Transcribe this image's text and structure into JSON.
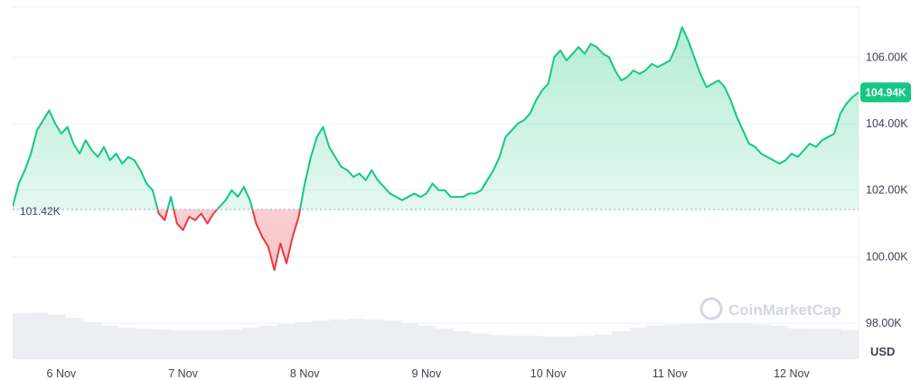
{
  "chart_data": {
    "type": "area",
    "currency_label": "USD",
    "baseline": {
      "value": 101.42,
      "label": "101.42K"
    },
    "last_price": {
      "value": 104.94,
      "label": "104.94K"
    },
    "ylim": [
      97.0,
      107.5
    ],
    "y_ticks": [
      {
        "value": 98.0,
        "label": "98.00K"
      },
      {
        "value": 100.0,
        "label": "100.00K"
      },
      {
        "value": 102.0,
        "label": "102.00K"
      },
      {
        "value": 104.0,
        "label": "104.00K"
      },
      {
        "value": 106.0,
        "label": "106.00K"
      }
    ],
    "x_range": [
      5.6,
      12.55
    ],
    "x_ticks": [
      {
        "value": 6,
        "label": "6 Nov"
      },
      {
        "value": 7,
        "label": "7 Nov"
      },
      {
        "value": 8,
        "label": "8 Nov"
      },
      {
        "value": 9,
        "label": "9 Nov"
      },
      {
        "value": 10,
        "label": "10 Nov"
      },
      {
        "value": 11,
        "label": "11 Nov"
      },
      {
        "value": 12,
        "label": "12 Nov"
      }
    ],
    "series": [
      {
        "values_in": "K USD",
        "points": [
          [
            5.6,
            101.5
          ],
          [
            5.65,
            102.2
          ],
          [
            5.7,
            102.6
          ],
          [
            5.75,
            103.1
          ],
          [
            5.8,
            103.8
          ],
          [
            5.85,
            104.1
          ],
          [
            5.9,
            104.4
          ],
          [
            5.95,
            104.0
          ],
          [
            6.0,
            103.7
          ],
          [
            6.05,
            103.9
          ],
          [
            6.1,
            103.4
          ],
          [
            6.15,
            103.1
          ],
          [
            6.2,
            103.5
          ],
          [
            6.25,
            103.2
          ],
          [
            6.3,
            103.0
          ],
          [
            6.35,
            103.3
          ],
          [
            6.4,
            102.9
          ],
          [
            6.45,
            103.1
          ],
          [
            6.5,
            102.8
          ],
          [
            6.55,
            103.0
          ],
          [
            6.6,
            102.9
          ],
          [
            6.65,
            102.6
          ],
          [
            6.7,
            102.2
          ],
          [
            6.75,
            102.0
          ],
          [
            6.8,
            101.3
          ],
          [
            6.85,
            101.1
          ],
          [
            6.9,
            101.8
          ],
          [
            6.95,
            101.0
          ],
          [
            7.0,
            100.8
          ],
          [
            7.05,
            101.2
          ],
          [
            7.1,
            101.1
          ],
          [
            7.15,
            101.3
          ],
          [
            7.2,
            101.0
          ],
          [
            7.25,
            101.3
          ],
          [
            7.3,
            101.5
          ],
          [
            7.35,
            101.7
          ],
          [
            7.4,
            102.0
          ],
          [
            7.45,
            101.8
          ],
          [
            7.5,
            102.1
          ],
          [
            7.55,
            101.7
          ],
          [
            7.6,
            101.0
          ],
          [
            7.65,
            100.6
          ],
          [
            7.7,
            100.3
          ],
          [
            7.75,
            99.6
          ],
          [
            7.8,
            100.4
          ],
          [
            7.85,
            99.8
          ],
          [
            7.9,
            100.6
          ],
          [
            7.95,
            101.2
          ],
          [
            8.0,
            102.2
          ],
          [
            8.05,
            103.0
          ],
          [
            8.1,
            103.6
          ],
          [
            8.15,
            103.9
          ],
          [
            8.2,
            103.3
          ],
          [
            8.25,
            103.0
          ],
          [
            8.3,
            102.7
          ],
          [
            8.35,
            102.6
          ],
          [
            8.4,
            102.4
          ],
          [
            8.45,
            102.5
          ],
          [
            8.5,
            102.3
          ],
          [
            8.55,
            102.6
          ],
          [
            8.6,
            102.3
          ],
          [
            8.65,
            102.1
          ],
          [
            8.7,
            101.9
          ],
          [
            8.75,
            101.8
          ],
          [
            8.8,
            101.7
          ],
          [
            8.85,
            101.8
          ],
          [
            8.9,
            101.9
          ],
          [
            8.95,
            101.8
          ],
          [
            9.0,
            101.9
          ],
          [
            9.05,
            102.2
          ],
          [
            9.1,
            102.0
          ],
          [
            9.15,
            102.0
          ],
          [
            9.2,
            101.8
          ],
          [
            9.25,
            101.8
          ],
          [
            9.3,
            101.8
          ],
          [
            9.35,
            101.9
          ],
          [
            9.4,
            101.9
          ],
          [
            9.45,
            102.0
          ],
          [
            9.5,
            102.3
          ],
          [
            9.55,
            102.6
          ],
          [
            9.6,
            103.0
          ],
          [
            9.65,
            103.6
          ],
          [
            9.7,
            103.8
          ],
          [
            9.75,
            104.0
          ],
          [
            9.8,
            104.1
          ],
          [
            9.85,
            104.3
          ],
          [
            9.9,
            104.7
          ],
          [
            9.95,
            105.0
          ],
          [
            10.0,
            105.2
          ],
          [
            10.05,
            106.0
          ],
          [
            10.1,
            106.2
          ],
          [
            10.15,
            105.9
          ],
          [
            10.2,
            106.1
          ],
          [
            10.25,
            106.3
          ],
          [
            10.3,
            106.1
          ],
          [
            10.35,
            106.4
          ],
          [
            10.4,
            106.3
          ],
          [
            10.45,
            106.1
          ],
          [
            10.5,
            106.0
          ],
          [
            10.55,
            105.6
          ],
          [
            10.6,
            105.3
          ],
          [
            10.65,
            105.4
          ],
          [
            10.7,
            105.6
          ],
          [
            10.75,
            105.5
          ],
          [
            10.8,
            105.6
          ],
          [
            10.85,
            105.8
          ],
          [
            10.9,
            105.7
          ],
          [
            10.95,
            105.8
          ],
          [
            11.0,
            105.9
          ],
          [
            11.05,
            106.3
          ],
          [
            11.1,
            106.9
          ],
          [
            11.15,
            106.5
          ],
          [
            11.2,
            106.0
          ],
          [
            11.25,
            105.5
          ],
          [
            11.3,
            105.1
          ],
          [
            11.35,
            105.2
          ],
          [
            11.4,
            105.3
          ],
          [
            11.45,
            105.1
          ],
          [
            11.5,
            104.7
          ],
          [
            11.55,
            104.2
          ],
          [
            11.6,
            103.8
          ],
          [
            11.65,
            103.4
          ],
          [
            11.7,
            103.3
          ],
          [
            11.75,
            103.1
          ],
          [
            11.8,
            103.0
          ],
          [
            11.85,
            102.9
          ],
          [
            11.9,
            102.8
          ],
          [
            11.95,
            102.9
          ],
          [
            12.0,
            103.1
          ],
          [
            12.05,
            103.0
          ],
          [
            12.1,
            103.2
          ],
          [
            12.15,
            103.4
          ],
          [
            12.2,
            103.3
          ],
          [
            12.25,
            103.5
          ],
          [
            12.3,
            103.6
          ],
          [
            12.35,
            103.7
          ],
          [
            12.4,
            104.3
          ],
          [
            12.45,
            104.6
          ],
          [
            12.5,
            104.8
          ],
          [
            12.55,
            104.94
          ]
        ]
      }
    ],
    "volume_profile": [
      0.82,
      0.83,
      0.8,
      0.74,
      0.66,
      0.6,
      0.56,
      0.54,
      0.53,
      0.52,
      0.52,
      0.52,
      0.53,
      0.56,
      0.6,
      0.63,
      0.66,
      0.69,
      0.71,
      0.72,
      0.71,
      0.69,
      0.65,
      0.6,
      0.55,
      0.5,
      0.46,
      0.43,
      0.42,
      0.42,
      0.41,
      0.41,
      0.42,
      0.44,
      0.5,
      0.56,
      0.6,
      0.62,
      0.63,
      0.64,
      0.64,
      0.64,
      0.62,
      0.6,
      0.55,
      0.54,
      0.54,
      0.52
    ],
    "colors": {
      "up_line": "#16c784",
      "down_line": "#ea3943",
      "baseline": "#9aa3b2",
      "volume": "#eceef1",
      "grid": "#eff2f5",
      "last_label_bg": "#16c784"
    }
  },
  "watermark": {
    "text": "CoinMarketCap"
  }
}
